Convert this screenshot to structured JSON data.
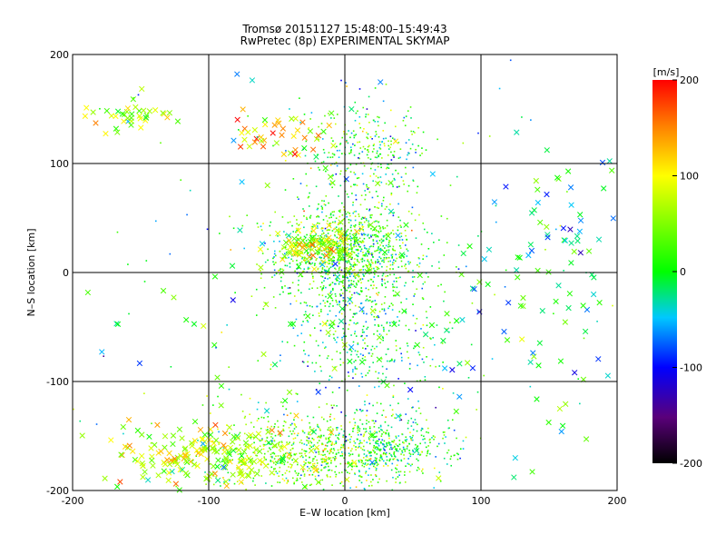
{
  "chart_data": {
    "type": "scatter",
    "title": "Tromsø 20151127 15:48:00–15:49:43",
    "subtitle": "RwPretec (8p) EXPERIMENTAL SKYMAP",
    "xlabel": "E–W location [km]",
    "ylabel": "N–S location [km]",
    "xlim": [
      -200,
      200
    ],
    "ylim": [
      -200,
      200
    ],
    "x_ticks": [
      "-200",
      "-100",
      "0",
      "100",
      "200"
    ],
    "y_ticks": [
      "-200",
      "-100",
      "0",
      "100",
      "200"
    ],
    "grid": true,
    "colorbar": {
      "label": "[m/s]",
      "range": [
        -200,
        200
      ],
      "ticks": [
        "200",
        "100",
        "0",
        "-100",
        "-200"
      ],
      "colormap": "rainbow (black-purple-blue-cyan-green-yellow-red)"
    },
    "marker_types": [
      "dot",
      "cross"
    ],
    "clusters": [
      {
        "x_center": 0,
        "y_center": 20,
        "x_spread": 25,
        "y_spread": 22,
        "velocity_mean": 20,
        "count": 900,
        "marker": "dot"
      },
      {
        "x_center": -30,
        "y_center": -165,
        "x_spread": 35,
        "y_spread": 18,
        "velocity_mean": 40,
        "count": 650,
        "marker": "dot"
      },
      {
        "x_center": 30,
        "y_center": -160,
        "x_spread": 25,
        "y_spread": 15,
        "velocity_mean": 0,
        "count": 400,
        "marker": "dot"
      },
      {
        "x_center": 15,
        "y_center": -40,
        "x_spread": 30,
        "y_spread": 50,
        "velocity_mean": -10,
        "count": 650,
        "marker": "dot"
      },
      {
        "x_center": 15,
        "y_center": 110,
        "x_spread": 22,
        "y_spread": 25,
        "velocity_mean": 10,
        "count": 300,
        "marker": "dot"
      },
      {
        "x_center": -20,
        "y_center": 25,
        "x_spread": 15,
        "y_spread": 10,
        "velocity_mean": 80,
        "count": 100,
        "marker": "cross"
      },
      {
        "x_center": -50,
        "y_center": 125,
        "x_spread": 18,
        "y_spread": 10,
        "velocity_mean": 120,
        "count": 40,
        "marker": "cross"
      },
      {
        "x_center": -160,
        "y_center": 142,
        "x_spread": 15,
        "y_spread": 8,
        "velocity_mean": 65,
        "count": 40,
        "marker": "cross"
      },
      {
        "x_center": -95,
        "y_center": -170,
        "x_spread": 35,
        "y_spread": 15,
        "velocity_mean": 75,
        "count": 200,
        "marker": "cross"
      },
      {
        "x_center": 160,
        "y_center": 45,
        "x_spread": 25,
        "y_spread": 40,
        "velocity_mean": -20,
        "count": 40,
        "marker": "cross"
      },
      {
        "x_center": 140,
        "y_center": -60,
        "x_spread": 40,
        "y_spread": 45,
        "velocity_mean": -10,
        "count": 40,
        "marker": "cross"
      },
      {
        "x_center": 0,
        "y_center": 0,
        "x_spread": 100,
        "y_spread": 100,
        "velocity_mean": 0,
        "count": 150,
        "marker": "cross"
      },
      {
        "x_center": 0,
        "y_center": 0,
        "x_spread": 110,
        "y_spread": 110,
        "velocity_mean": 0,
        "count": 150,
        "marker": "dot"
      }
    ]
  }
}
